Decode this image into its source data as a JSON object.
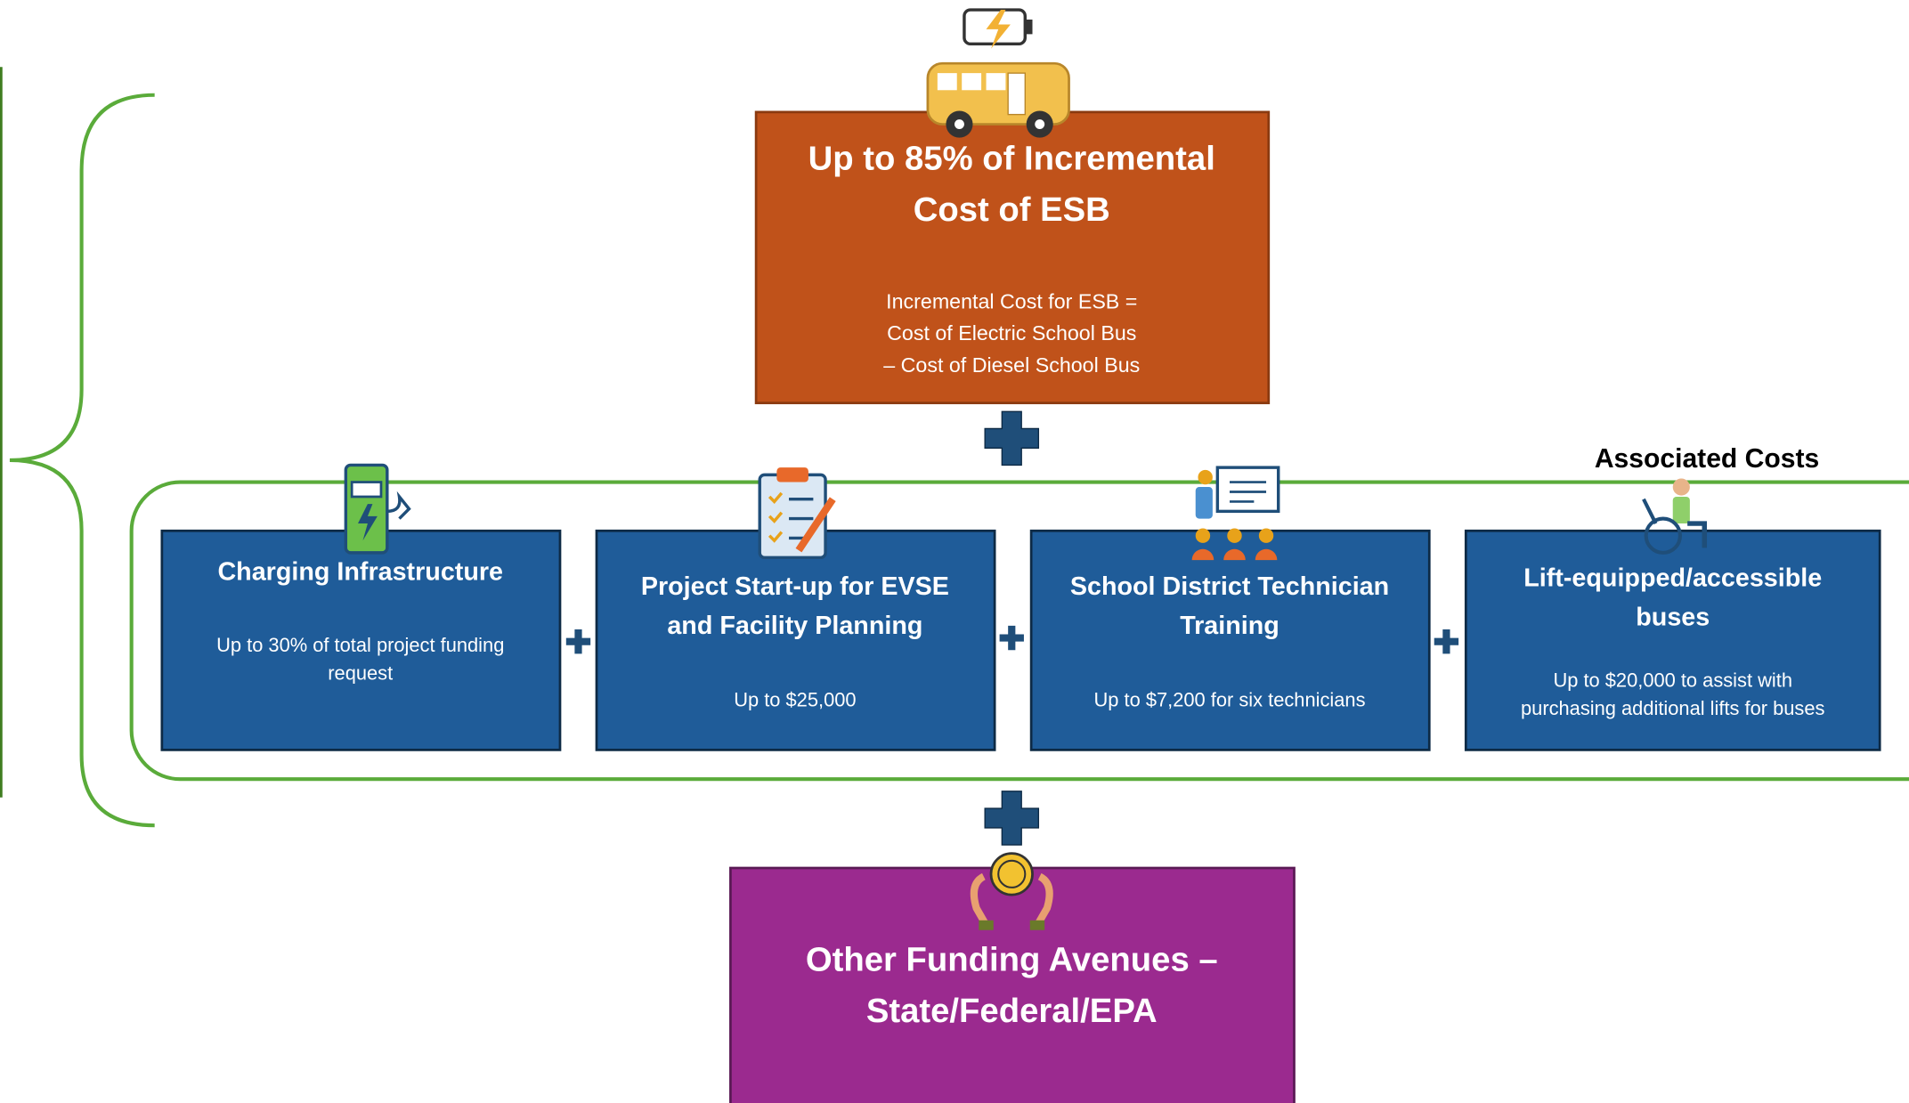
{
  "top_box": {
    "title": [
      "Up to 85% of Incremental",
      "Cost of ESB"
    ],
    "description": [
      "Incremental Cost for ESB =",
      "Cost of Electric School Bus",
      "– Cost of Diesel School Bus"
    ]
  },
  "group_label": "Associated Costs",
  "cost_boxes": [
    {
      "title": [
        "Charging Infrastructure"
      ],
      "description": [
        "Up to 30% of total project funding",
        "request"
      ]
    },
    {
      "title": [
        "Project Start-up for EVSE",
        "and Facility Planning"
      ],
      "description": [
        "Up to $25,000"
      ]
    },
    {
      "title": [
        "School District Technician",
        "Training"
      ],
      "description": [
        "Up to $7,200 for six technicians"
      ]
    },
    {
      "title": [
        "Lift-equipped/accessible",
        "buses"
      ],
      "description": [
        "Up to $20,000 to assist with",
        "purchasing additional lifts for buses"
      ]
    }
  ],
  "bottom_box": {
    "title": [
      "Other Funding Avenues –",
      "State/Federal/EPA"
    ]
  }
}
